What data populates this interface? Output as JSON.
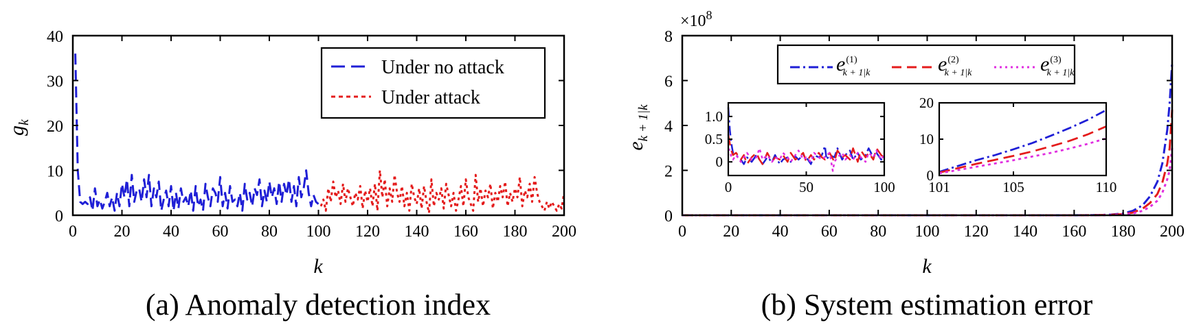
{
  "chart_data": [
    {
      "type": "line",
      "caption": "(a) Anomaly detection index",
      "xlabel": "k",
      "ylabel": "g",
      "ylabel_sub": "k",
      "xlim": [
        0,
        200
      ],
      "ylim": [
        0,
        40
      ],
      "xticks": [
        "0",
        "20",
        "40",
        "60",
        "80",
        "100",
        "120",
        "140",
        "160",
        "180",
        "200"
      ],
      "yticks": [
        "0",
        "10",
        "20",
        "30",
        "40"
      ],
      "legend_position": "top-right",
      "grid": false,
      "series": [
        {
          "name": "Under no attack",
          "color": "#1f1fd6",
          "style": "dashed",
          "x": [
            1,
            2,
            3,
            4,
            5,
            6,
            7,
            8,
            9,
            10,
            11,
            12,
            13,
            14,
            15,
            16,
            17,
            18,
            19,
            20,
            21,
            22,
            23,
            24,
            25,
            26,
            27,
            28,
            29,
            30,
            31,
            32,
            33,
            34,
            35,
            36,
            37,
            38,
            39,
            40,
            41,
            42,
            43,
            44,
            45,
            46,
            47,
            48,
            49,
            50,
            51,
            52,
            53,
            54,
            55,
            56,
            57,
            58,
            59,
            60,
            61,
            62,
            63,
            64,
            65,
            66,
            67,
            68,
            69,
            70,
            71,
            72,
            73,
            74,
            75,
            76,
            77,
            78,
            79,
            80,
            81,
            82,
            83,
            84,
            85,
            86,
            87,
            88,
            89,
            90,
            91,
            92,
            93,
            94,
            95,
            96,
            97,
            98,
            99,
            100
          ],
          "y": [
            36,
            10,
            3,
            2.5,
            3,
            2.5,
            4,
            1,
            6,
            2,
            3.5,
            1.5,
            3,
            5,
            2,
            4,
            1,
            5,
            2,
            7,
            4,
            8,
            2,
            9,
            3,
            5.5,
            6,
            3,
            8,
            4,
            9,
            2,
            6,
            4,
            7.5,
            1,
            3.5,
            5.5,
            2,
            6.5,
            1,
            5,
            1.5,
            6,
            3,
            4,
            2,
            5.5,
            1,
            6.5,
            2,
            3.5,
            1,
            7,
            4,
            2,
            6,
            5,
            3,
            8.5,
            2,
            5,
            1.5,
            6.5,
            3,
            3.5,
            2,
            5,
            1,
            7,
            3.5,
            5,
            2,
            6,
            4.5,
            8,
            2,
            5.5,
            3,
            7.5,
            4,
            6,
            2.5,
            7.5,
            3,
            7,
            4.5,
            8,
            3,
            6.5,
            2,
            8.5,
            4,
            6,
            10,
            5,
            2,
            4.5,
            3,
            2.5
          ]
        },
        {
          "name": "Under attack",
          "color": "#e41c1c",
          "style": "dotted",
          "x": [
            101,
            102,
            103,
            104,
            105,
            106,
            107,
            108,
            109,
            110,
            111,
            112,
            113,
            114,
            115,
            116,
            117,
            118,
            119,
            120,
            121,
            122,
            123,
            124,
            125,
            126,
            127,
            128,
            129,
            130,
            131,
            132,
            133,
            134,
            135,
            136,
            137,
            138,
            139,
            140,
            141,
            142,
            143,
            144,
            145,
            146,
            147,
            148,
            149,
            150,
            151,
            152,
            153,
            154,
            155,
            156,
            157,
            158,
            159,
            160,
            161,
            162,
            163,
            164,
            165,
            166,
            167,
            168,
            169,
            170,
            171,
            172,
            173,
            174,
            175,
            176,
            177,
            178,
            179,
            180,
            181,
            182,
            183,
            184,
            185,
            186,
            187,
            188,
            189,
            190,
            191,
            192,
            193,
            194,
            195,
            196,
            197,
            198,
            199,
            200
          ],
          "y": [
            2,
            3.5,
            1,
            6,
            3,
            7.5,
            4,
            5.5,
            2.5,
            7,
            3,
            6,
            4,
            2,
            5,
            3.5,
            6.5,
            1.5,
            5.5,
            3,
            6,
            2,
            7,
            1,
            10,
            4,
            8,
            2,
            6,
            3,
            9,
            5,
            3,
            6.5,
            2,
            5,
            1,
            7,
            4,
            2.5,
            6,
            1.5,
            6.5,
            3,
            0.5,
            8,
            2,
            5,
            3.5,
            6,
            1.5,
            7,
            4.5,
            2,
            5,
            1,
            3.5,
            6.5,
            2,
            8,
            4,
            2.5,
            1,
            9,
            3,
            6,
            2,
            5.5,
            4,
            7,
            1.5,
            5,
            3,
            6.5,
            4,
            7.5,
            2,
            5,
            3,
            6,
            4,
            8.5,
            2,
            5.5,
            4,
            7,
            3,
            8.5,
            5,
            3,
            2,
            1,
            3,
            1.5,
            3,
            2,
            1,
            2.5,
            1.5,
            5
          ]
        }
      ]
    },
    {
      "type": "line",
      "caption": "(b) System estimation error",
      "xlabel": "k",
      "ylabel": "e",
      "ylabel_sub": "k + 1|k",
      "scale_label": "×10",
      "scale_exp": "8",
      "xlim": [
        0,
        200
      ],
      "ylim": [
        0,
        8
      ],
      "xticks": [
        "0",
        "20",
        "40",
        "60",
        "80",
        "100",
        "120",
        "140",
        "160",
        "180",
        "200"
      ],
      "yticks": [
        "0",
        "2",
        "4",
        "6",
        "8"
      ],
      "legend_position": "top",
      "grid": false,
      "series": [
        {
          "name": "e",
          "sup": "(1)",
          "sub": "k + 1|k",
          "color": "#1f1fd6",
          "style": "dashdot",
          "x": [
            0,
            20,
            40,
            60,
            80,
            100,
            120,
            140,
            160,
            170,
            175,
            180,
            184,
            188,
            191,
            194,
            196,
            198,
            199,
            200
          ],
          "y": [
            0,
            0,
            0,
            0,
            0,
            0,
            0,
            0,
            0,
            0.01,
            0.03,
            0.08,
            0.2,
            0.45,
            0.85,
            1.5,
            2.3,
            3.8,
            5.0,
            6.8
          ]
        },
        {
          "name": "e",
          "sup": "(2)",
          "sub": "k + 1|k",
          "color": "#e41c1c",
          "style": "dashed",
          "x": [
            0,
            20,
            40,
            60,
            80,
            100,
            120,
            140,
            160,
            170,
            175,
            180,
            184,
            188,
            191,
            194,
            196,
            198,
            199,
            200
          ],
          "y": [
            0,
            0,
            0,
            0,
            0,
            0,
            0,
            0,
            0,
            0.01,
            0.02,
            0.05,
            0.12,
            0.3,
            0.55,
            0.95,
            1.45,
            2.3,
            3.0,
            4.7
          ]
        },
        {
          "name": "e",
          "sup": "(3)",
          "sub": "k + 1|k",
          "color": "#e02ee0",
          "style": "dotted",
          "x": [
            0,
            20,
            40,
            60,
            80,
            100,
            120,
            140,
            160,
            170,
            175,
            180,
            184,
            188,
            191,
            194,
            196,
            198,
            199,
            200
          ],
          "y": [
            0,
            0,
            0,
            0,
            0,
            0,
            0,
            0,
            0,
            0.0,
            0.01,
            0.03,
            0.08,
            0.2,
            0.38,
            0.65,
            1.0,
            1.6,
            2.0,
            3.0
          ]
        }
      ],
      "insets": [
        {
          "type": "line",
          "xlim": [
            0,
            100
          ],
          "ylim": [
            -0.3,
            1.3
          ],
          "xticks": [
            "0",
            "50",
            "100"
          ],
          "yticks": [
            "0",
            "0.5",
            "1.0"
          ],
          "series": [
            {
              "color": "#1f1fd6",
              "style": "dashdot",
              "x": [
                0,
                1,
                2,
                3,
                5,
                8,
                10,
                12,
                15,
                18,
                20,
                22,
                25,
                28,
                30,
                33,
                35,
                38,
                40,
                43,
                45,
                48,
                50,
                53,
                55,
                58,
                60,
                62,
                63,
                65,
                68,
                70,
                73,
                75,
                78,
                80,
                83,
                85,
                88,
                90,
                93,
                95,
                98,
                100
              ],
              "y": [
                1.2,
                0.7,
                0.4,
                0.2,
                0.15,
                0.05,
                -0.05,
                0.1,
                0.0,
                0.15,
                0.05,
                -0.05,
                0.1,
                0.0,
                0.15,
                -0.05,
                0.05,
                0.1,
                0.0,
                0.12,
                0.05,
                0.15,
                0.1,
                -0.05,
                0.15,
                0.1,
                0.15,
                0.35,
                0.05,
                0.15,
                0.1,
                0.3,
                0.05,
                0.15,
                0.25,
                0.05,
                0.2,
                0.05,
                0.15,
                0.3,
                0.1,
                0.2,
                0.05,
                0.1
              ]
            },
            {
              "color": "#e41c1c",
              "style": "dashed",
              "x": [
                0,
                1,
                2,
                3,
                5,
                8,
                10,
                12,
                15,
                18,
                20,
                22,
                25,
                28,
                30,
                33,
                35,
                38,
                40,
                43,
                45,
                48,
                50,
                53,
                55,
                58,
                60,
                62,
                65,
                68,
                70,
                73,
                75,
                78,
                80,
                83,
                85,
                88,
                90,
                93,
                95,
                98,
                100
              ],
              "y": [
                0.6,
                0.4,
                0.25,
                0.15,
                0.2,
                0.05,
                0.15,
                -0.05,
                0.1,
                0.2,
                0.05,
                -0.05,
                0.2,
                0.0,
                0.1,
                0.05,
                0.15,
                0.0,
                0.2,
                0.05,
                0.1,
                0.2,
                0.0,
                0.15,
                0.05,
                0.2,
                0.1,
                0.05,
                0.2,
                0.0,
                0.25,
                0.1,
                0.15,
                0.05,
                0.3,
                0.0,
                0.25,
                0.1,
                0.2,
                0.05,
                0.3,
                0.15,
                0.1
              ]
            },
            {
              "color": "#e02ee0",
              "style": "dotted",
              "x": [
                0,
                1,
                2,
                3,
                5,
                8,
                10,
                12,
                15,
                18,
                20,
                22,
                25,
                28,
                30,
                33,
                35,
                38,
                40,
                43,
                45,
                48,
                50,
                53,
                55,
                58,
                60,
                63,
                65,
                67,
                68,
                70,
                73,
                75,
                78,
                80,
                83,
                85,
                88,
                90,
                93,
                95,
                98,
                100
              ],
              "y": [
                0.3,
                0.25,
                0.1,
                0.05,
                0.15,
                0.0,
                0.1,
                0.2,
                0.05,
                0.1,
                0.3,
                0.05,
                0.15,
                0.0,
                0.1,
                0.05,
                0.2,
                0.1,
                0.0,
                0.15,
                0.25,
                0.05,
                0.1,
                0.0,
                0.2,
                0.1,
                0.05,
                0.15,
                0.2,
                -0.2,
                0.0,
                0.1,
                0.2,
                0.05,
                0.15,
                0.05,
                0.2,
                0.1,
                0.0,
                0.2,
                0.1,
                0.25,
                0.05,
                0.15
              ]
            }
          ]
        },
        {
          "type": "line",
          "xlim": [
            101,
            110
          ],
          "ylim": [
            0,
            20
          ],
          "xticks": [
            "101",
            "105",
            "110"
          ],
          "yticks": [
            "0",
            "10",
            "20"
          ],
          "series": [
            {
              "color": "#1f1fd6",
              "style": "dashdot",
              "x": [
                101,
                102,
                103,
                104,
                105,
                106,
                107,
                108,
                109,
                110
              ],
              "y": [
                1,
                2.6,
                4.2,
                5.6,
                7.2,
                8.9,
                10.9,
                13,
                15.3,
                18
              ]
            },
            {
              "color": "#e41c1c",
              "style": "dashed",
              "x": [
                101,
                102,
                103,
                104,
                105,
                106,
                107,
                108,
                109,
                110
              ],
              "y": [
                0.8,
                2.0,
                3.2,
                4.3,
                5.4,
                6.6,
                8.0,
                9.5,
                11.3,
                13.5
              ]
            },
            {
              "color": "#e02ee0",
              "style": "dotted",
              "x": [
                101,
                102,
                103,
                104,
                105,
                106,
                107,
                108,
                109,
                110
              ],
              "y": [
                0.6,
                1.5,
                2.4,
                3.3,
                4.2,
                5.2,
                6.2,
                7.4,
                8.7,
                10.2
              ]
            }
          ]
        }
      ]
    }
  ]
}
